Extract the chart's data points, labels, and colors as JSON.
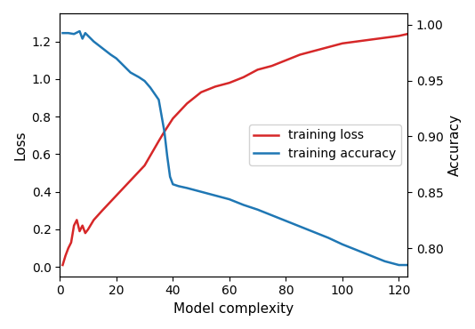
{
  "xlabel": "Model complexity",
  "ylabel_left": "Loss",
  "ylabel_right": "Accuracy",
  "xlim": [
    0,
    123
  ],
  "ylim_left": [
    -0.05,
    1.35
  ],
  "ylim_right": [
    0.775,
    1.01
  ],
  "xticks": [
    0,
    20,
    40,
    60,
    80,
    100,
    120
  ],
  "yticks_left": [
    0.0,
    0.2,
    0.4,
    0.6,
    0.8,
    1.0,
    1.2
  ],
  "yticks_right": [
    0.8,
    0.85,
    0.9,
    0.95,
    1.0
  ],
  "loss_x": [
    1,
    2,
    3,
    4,
    5,
    6,
    7,
    8,
    9,
    10,
    12,
    15,
    20,
    25,
    30,
    35,
    37,
    40,
    45,
    50,
    55,
    60,
    65,
    70,
    75,
    80,
    85,
    90,
    95,
    100,
    105,
    110,
    115,
    120,
    123
  ],
  "loss_y": [
    0.01,
    0.06,
    0.1,
    0.13,
    0.22,
    0.25,
    0.19,
    0.22,
    0.18,
    0.2,
    0.25,
    0.3,
    0.38,
    0.46,
    0.54,
    0.67,
    0.72,
    0.79,
    0.87,
    0.93,
    0.96,
    0.98,
    1.01,
    1.05,
    1.07,
    1.1,
    1.13,
    1.15,
    1.17,
    1.19,
    1.2,
    1.21,
    1.22,
    1.23,
    1.24
  ],
  "acc_x": [
    1,
    3,
    5,
    7,
    8,
    9,
    10,
    12,
    15,
    18,
    20,
    25,
    28,
    30,
    32,
    35,
    37,
    38,
    39,
    40,
    42,
    45,
    50,
    55,
    60,
    65,
    70,
    75,
    80,
    85,
    90,
    95,
    100,
    105,
    110,
    115,
    120,
    123
  ],
  "acc_y_left": [
    1.245,
    1.245,
    1.24,
    1.255,
    1.215,
    1.245,
    1.23,
    1.2,
    1.165,
    1.13,
    1.11,
    1.035,
    1.01,
    0.99,
    0.955,
    0.89,
    0.72,
    0.59,
    0.48,
    0.44,
    0.43,
    0.42,
    0.4,
    0.38,
    0.36,
    0.33,
    0.305,
    0.275,
    0.245,
    0.215,
    0.185,
    0.155,
    0.12,
    0.09,
    0.06,
    0.03,
    0.01,
    0.01
  ],
  "loss_color": "#d62728",
  "acc_color": "#1f77b4",
  "loss_label": "training loss",
  "acc_label": "training accuracy",
  "linewidth": 1.8,
  "legend_loc": "center right",
  "legend_fontsize": 10
}
